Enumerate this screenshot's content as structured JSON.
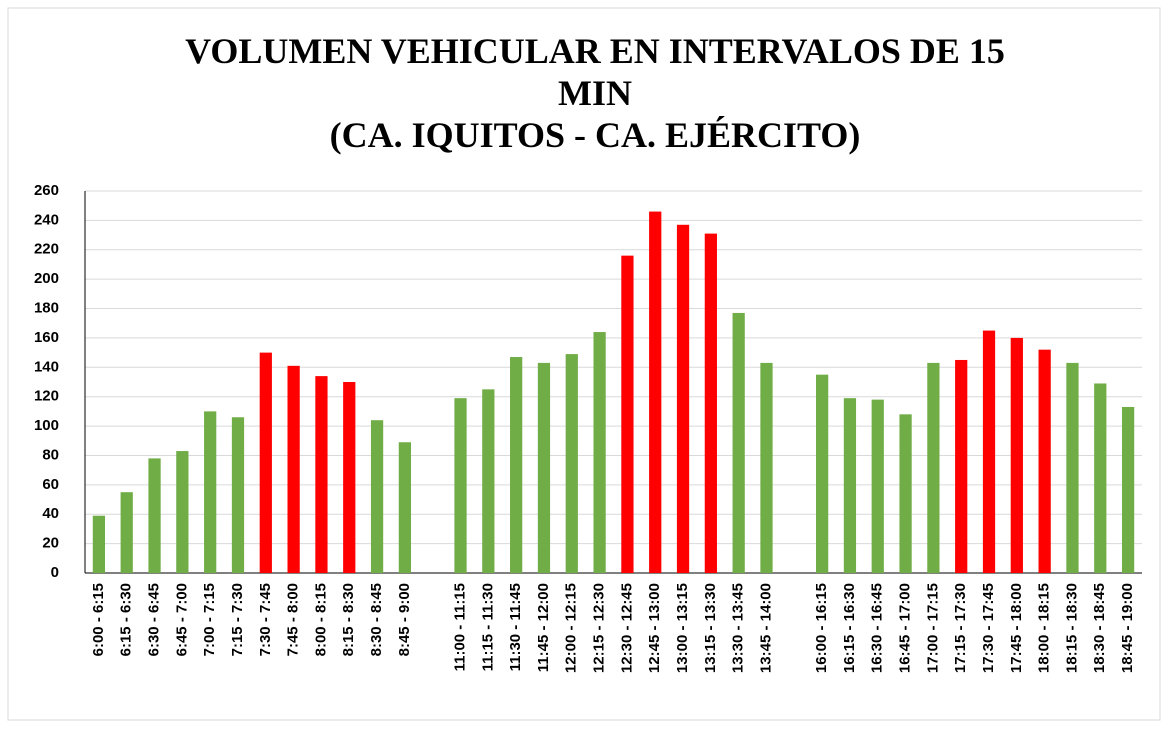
{
  "chart_data": {
    "type": "bar",
    "title": [
      "VOLUMEN VEHICULAR EN INTERVALOS DE 15",
      "MIN",
      "(CA. IQUITOS - CA. EJÉRCITO)"
    ],
    "categories": [
      "6:00 - 6:15",
      "6:15 - 6:30",
      "6:30 - 6:45",
      "6:45 - 7:00",
      "7:00 - 7:15",
      "7:15 - 7:30",
      "7:30 - 7:45",
      "7:45 - 8:00",
      "8:00 - 8:15",
      "8:15 - 8:30",
      "8:30 - 8:45",
      "8:45 - 9:00",
      null,
      "11:00 - 11:15",
      "11:15 - 11:30",
      "11:30 - 11:45",
      "11:45 - 12:00",
      "12:00 - 12:15",
      "12:15 - 12:30",
      "12:30 - 12:45",
      "12:45 - 13:00",
      "13:00 - 13:15",
      "13:15 - 13:30",
      "13:30 - 13:45",
      "13:45 - 14:00",
      null,
      "16:00 - 16:15",
      "16:15 - 16:30",
      "16:30 - 16:45",
      "16:45 - 17:00",
      "17:00 - 17:15",
      "17:15 - 17:30",
      "17:30 - 17:45",
      "17:45 - 18:00",
      "18:00 - 18:15",
      "18:15 - 18:30",
      "18:30 - 18:45",
      "18:45 - 19:00"
    ],
    "values": [
      39,
      55,
      78,
      83,
      110,
      106,
      150,
      141,
      134,
      130,
      104,
      89,
      null,
      119,
      125,
      147,
      143,
      149,
      164,
      216,
      246,
      237,
      231,
      177,
      143,
      null,
      135,
      119,
      118,
      108,
      143,
      145,
      165,
      160,
      152,
      143,
      129,
      113
    ],
    "colors": [
      "#70ad47",
      "#70ad47",
      "#70ad47",
      "#70ad47",
      "#70ad47",
      "#70ad47",
      "#ff0000",
      "#ff0000",
      "#ff0000",
      "#ff0000",
      "#70ad47",
      "#70ad47",
      null,
      "#70ad47",
      "#70ad47",
      "#70ad47",
      "#70ad47",
      "#70ad47",
      "#70ad47",
      "#ff0000",
      "#ff0000",
      "#ff0000",
      "#ff0000",
      "#70ad47",
      "#70ad47",
      null,
      "#70ad47",
      "#70ad47",
      "#70ad47",
      "#70ad47",
      "#70ad47",
      "#ff0000",
      "#ff0000",
      "#ff0000",
      "#ff0000",
      "#70ad47",
      "#70ad47",
      "#70ad47"
    ],
    "ylim": [
      0,
      260
    ],
    "yticks": [
      0,
      20,
      40,
      60,
      80,
      100,
      120,
      140,
      160,
      180,
      200,
      220,
      240,
      260
    ],
    "grid": true
  }
}
